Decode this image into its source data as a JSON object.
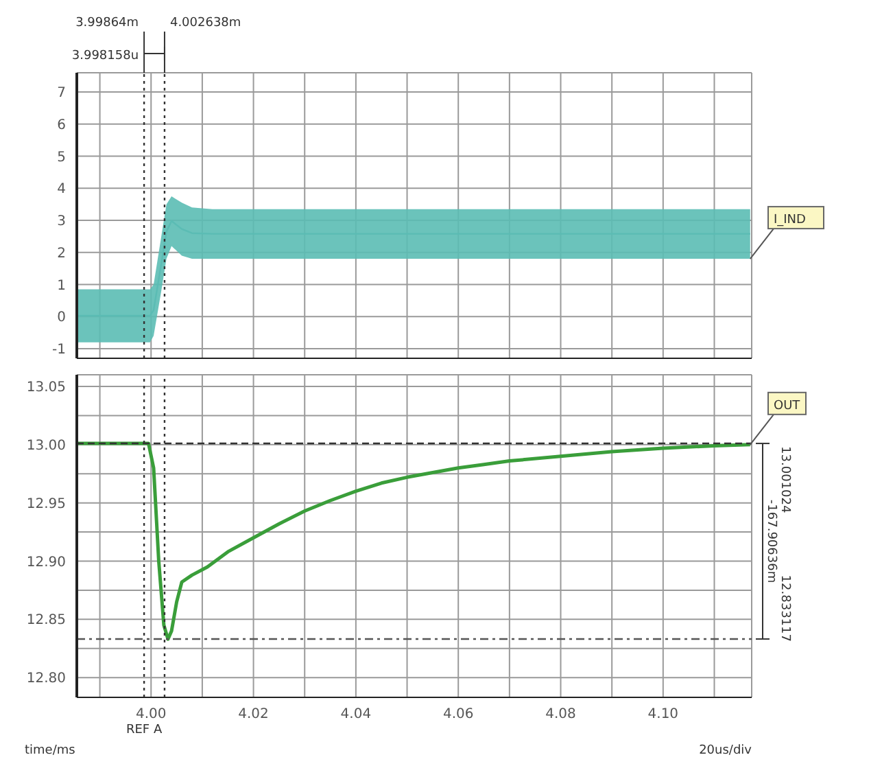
{
  "chart_data": [
    {
      "type": "line",
      "xlim": [
        3.9855,
        4.1173
      ],
      "ylim": [
        -1.3,
        7.6
      ],
      "xticks": [
        {
          "value": 3.99,
          "label": null
        },
        {
          "value": 4.0,
          "label": null
        },
        {
          "value": 4.01,
          "label": null
        },
        {
          "value": 4.02,
          "label": null
        },
        {
          "value": 4.03,
          "label": null
        },
        {
          "value": 4.04,
          "label": null
        },
        {
          "value": 4.05,
          "label": null
        },
        {
          "value": 4.06,
          "label": null
        },
        {
          "value": 4.07,
          "label": null
        },
        {
          "value": 4.08,
          "label": null
        },
        {
          "value": 4.09,
          "label": null
        },
        {
          "value": 4.1,
          "label": null
        },
        {
          "value": 4.11,
          "label": null
        }
      ],
      "yticks": [
        -1,
        0,
        1,
        2,
        3,
        4,
        5,
        6,
        7
      ],
      "tick_labels": "y",
      "grid": true,
      "marker": "none",
      "line_style": "solid",
      "series": [
        {
          "name": "I_IND",
          "color": "#5bbcb4",
          "x": [
            3.9855,
            3.9998,
            4.0005,
            4.002,
            4.003,
            4.004,
            4.006,
            4.008,
            4.012,
            4.117
          ],
          "values": [
            0.03,
            0.03,
            0.2,
            1.65,
            2.65,
            2.98,
            2.73,
            2.6,
            2.58,
            2.58
          ],
          "lower": [
            -0.8,
            -0.8,
            -0.6,
            0.8,
            1.8,
            2.2,
            1.9,
            1.8,
            1.8,
            1.8
          ],
          "upper": [
            0.85,
            0.85,
            1.0,
            2.5,
            3.5,
            3.75,
            3.55,
            3.4,
            3.35,
            3.35
          ]
        }
      ],
      "ref_lines": [
        {
          "axis": "x",
          "value": 3.99864,
          "label": "3.99864m",
          "line_style": "dotted",
          "color": "#333333"
        },
        {
          "axis": "x",
          "value": 4.002638,
          "label": "4.002638m",
          "line_style": "dotted",
          "color": "#333333"
        }
      ],
      "annotations": [
        "3.998158u"
      ]
    },
    {
      "type": "line",
      "xlabel": "time/ms",
      "xlim": [
        3.9855,
        4.1173
      ],
      "ylim": [
        12.783,
        13.06
      ],
      "xticks": [
        {
          "value": 3.99,
          "label": null
        },
        {
          "value": 4.0,
          "label": "4.00"
        },
        {
          "value": 4.01,
          "label": null
        },
        {
          "value": 4.02,
          "label": "4.02"
        },
        {
          "value": 4.03,
          "label": null
        },
        {
          "value": 4.04,
          "label": "4.04"
        },
        {
          "value": 4.05,
          "label": null
        },
        {
          "value": 4.06,
          "label": "4.06"
        },
        {
          "value": 4.07,
          "label": null
        },
        {
          "value": 4.08,
          "label": "4.08"
        },
        {
          "value": 4.09,
          "label": null
        },
        {
          "value": 4.1,
          "label": "4.10"
        },
        {
          "value": 4.11,
          "label": null
        }
      ],
      "yticks": [
        {
          "value": 12.8,
          "label": "12.80"
        },
        {
          "value": 12.825,
          "label": null
        },
        {
          "value": 12.85,
          "label": "12.85"
        },
        {
          "value": 12.875,
          "label": null
        },
        {
          "value": 12.9,
          "label": "12.90"
        },
        {
          "value": 12.925,
          "label": null
        },
        {
          "value": 12.95,
          "label": "12.95"
        },
        {
          "value": 12.975,
          "label": null
        },
        {
          "value": 13.0,
          "label": "13.00"
        },
        {
          "value": 13.025,
          "label": null
        },
        {
          "value": 13.05,
          "label": "13.05"
        }
      ],
      "grid": true,
      "marker": "none",
      "line_style": "solid",
      "series": [
        {
          "name": "OUT",
          "color": "#3a9e3a",
          "x": [
            3.9855,
            3.9995,
            4.0005,
            4.0015,
            4.0025,
            4.0033,
            4.004,
            4.005,
            4.006,
            4.008,
            4.011,
            4.015,
            4.02,
            4.025,
            4.03,
            4.035,
            4.04,
            4.045,
            4.05,
            4.055,
            4.06,
            4.065,
            4.07,
            4.08,
            4.09,
            4.1,
            4.11,
            4.117
          ],
          "values": [
            13.001,
            13.001,
            12.98,
            12.9,
            12.845,
            12.833,
            12.84,
            12.865,
            12.882,
            12.888,
            12.895,
            12.908,
            12.92,
            12.932,
            12.943,
            12.952,
            12.96,
            12.967,
            12.972,
            12.976,
            12.98,
            12.983,
            12.986,
            12.99,
            12.994,
            12.997,
            12.999,
            13.0
          ]
        }
      ],
      "ref_lines": [
        {
          "axis": "x",
          "value": 3.99864,
          "label": "REF A",
          "line_style": "dotted",
          "color": "#333333"
        },
        {
          "axis": "x",
          "value": 4.002638,
          "label": null,
          "line_style": "dotted",
          "color": "#333333"
        },
        {
          "axis": "y",
          "value": 13.001024,
          "label": "13.001024",
          "line_style": "dashed",
          "color": "#333333"
        },
        {
          "axis": "y",
          "value": 12.833117,
          "label": "12.833117",
          "line_style": "dashdot",
          "color": "#555555"
        }
      ],
      "annotations": [
        "-167.90636m",
        "20us/div"
      ]
    }
  ]
}
